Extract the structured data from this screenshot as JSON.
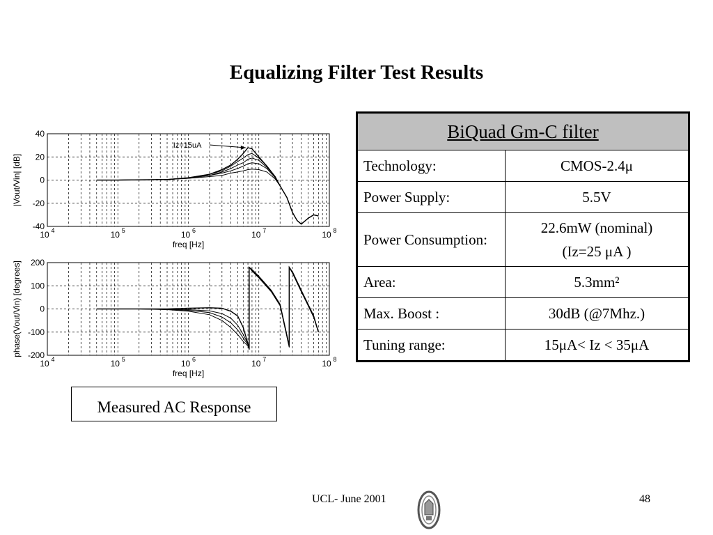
{
  "slide": {
    "title": "Equalizing Filter Test Results",
    "caption": "Measured AC Response",
    "footer": "UCL- June 2001",
    "page_number": "48"
  },
  "table": {
    "header": "BiQuad Gm-C filter",
    "rows": [
      {
        "label": "Technology:",
        "value": "CMOS-2.4μ"
      },
      {
        "label": "Power Supply:",
        "value": "5.5V"
      },
      {
        "label": "Power Consumption:",
        "value_lines": [
          "22.6mW (nominal)",
          "(Iz=25 μA )"
        ]
      },
      {
        "label": "Area:",
        "value": "5.3mm²"
      },
      {
        "label": "Max. Boost :",
        "value": "30dB (@7Mhz.)"
      },
      {
        "label": "Tuning range:",
        "value": "15μA< Iz < 35μA"
      }
    ]
  },
  "chart_data": [
    {
      "type": "line",
      "xscale": "log",
      "xlabel": "freq [Hz]",
      "ylabel": "|Vout/Vin| [dB]",
      "xlim": [
        10000,
        100000000
      ],
      "ylim": [
        -40,
        40
      ],
      "yticks": [
        40,
        20,
        0,
        -20,
        -40
      ],
      "xtick_exponents": [
        "4",
        "5",
        "6",
        "7",
        "8"
      ],
      "annotation": "Iz=15uA",
      "grid": true,
      "series": [
        {
          "x": [
            50000,
            100000,
            500000,
            1000000,
            2000000,
            3000000,
            4000000,
            5000000,
            6000000,
            7000000,
            8000000,
            10000000,
            13000000,
            17000000,
            20000000,
            25000000,
            30000000,
            35000000,
            40000000,
            50000000,
            60000000,
            70000000
          ],
          "y": [
            0,
            0,
            0.5,
            2,
            5,
            9,
            13,
            18,
            23,
            28,
            27,
            20,
            12,
            3,
            -5,
            -15,
            -28,
            -35,
            -38,
            -33,
            -30,
            -31
          ]
        },
        {
          "x": [
            50000,
            100000,
            500000,
            1000000,
            2000000,
            3000000,
            4000000,
            5000000,
            6000000,
            7000000,
            8000000,
            10000000,
            13000000,
            17000000,
            20000000,
            25000000,
            30000000,
            35000000,
            40000000,
            50000000,
            60000000,
            70000000
          ],
          "y": [
            0,
            0,
            0.5,
            2,
            5,
            8,
            12,
            16,
            19,
            22,
            23,
            19,
            12,
            3,
            -5,
            -15,
            -28,
            -35,
            -38,
            -33,
            -30,
            -31
          ]
        },
        {
          "x": [
            50000,
            100000,
            500000,
            1000000,
            2000000,
            3000000,
            4000000,
            5000000,
            6000000,
            7000000,
            8000000,
            10000000,
            13000000,
            17000000,
            20000000,
            25000000,
            30000000,
            35000000,
            40000000,
            50000000,
            60000000,
            70000000
          ],
          "y": [
            0,
            0,
            0.5,
            2,
            4,
            7,
            10,
            13,
            15,
            18,
            19,
            17,
            11,
            3,
            -5,
            -15,
            -28,
            -35,
            -38,
            -33,
            -30,
            -31
          ]
        },
        {
          "x": [
            50000,
            100000,
            500000,
            1000000,
            2000000,
            3000000,
            4000000,
            5000000,
            6000000,
            7000000,
            8000000,
            10000000,
            13000000,
            17000000,
            20000000,
            25000000,
            30000000,
            35000000,
            40000000,
            50000000,
            60000000,
            70000000
          ],
          "y": [
            0,
            0,
            0.5,
            1.5,
            4,
            6,
            8,
            10,
            12,
            14,
            15,
            14,
            10,
            2,
            -5,
            -15,
            -28,
            -35,
            -38,
            -33,
            -30,
            -31
          ]
        },
        {
          "x": [
            50000,
            100000,
            500000,
            1000000,
            2000000,
            3000000,
            4000000,
            5000000,
            6000000,
            7000000,
            8000000,
            10000000,
            13000000,
            17000000,
            20000000,
            25000000,
            30000000,
            35000000,
            40000000,
            50000000,
            60000000,
            70000000
          ],
          "y": [
            0,
            0,
            0.5,
            1.5,
            3,
            4,
            6,
            7,
            8,
            9,
            9.5,
            9,
            7,
            1,
            -5,
            -15,
            -28,
            -35,
            -38,
            -33,
            -30,
            -31
          ]
        }
      ]
    },
    {
      "type": "line",
      "xscale": "log",
      "xlabel": "freq [Hz]",
      "ylabel": "phase(Vout/Vin) [degrees]",
      "xlim": [
        10000,
        100000000
      ],
      "ylim": [
        -200,
        200
      ],
      "yticks": [
        200,
        100,
        0,
        -100,
        -200
      ],
      "xtick_exponents": [
        "4",
        "5",
        "6",
        "7",
        "8"
      ],
      "grid": true,
      "series": [
        {
          "x": [
            50000,
            200000,
            500000,
            1000000,
            2000000,
            3000000,
            4000000,
            5000000,
            6000000,
            7000000,
            7300000,
            7300001,
            8000000,
            10000000,
            15000000,
            20000000,
            27000000,
            27000001,
            30000000,
            40000000,
            50000000,
            60000000,
            70000000
          ],
          "y": [
            0,
            0,
            0,
            3,
            5,
            3,
            -10,
            -30,
            -80,
            -150,
            -175,
            180,
            170,
            140,
            80,
            20,
            -160,
            180,
            160,
            80,
            20,
            -30,
            -100
          ]
        },
        {
          "x": [
            50000,
            200000,
            500000,
            1000000,
            2000000,
            3000000,
            4000000,
            5000000,
            6000000,
            7000000,
            7300000,
            7300001,
            8000000,
            10000000,
            15000000,
            20000000,
            27000000,
            27000001,
            30000000,
            40000000,
            50000000,
            60000000,
            70000000
          ],
          "y": [
            0,
            0,
            -1,
            -3,
            -8,
            -20,
            -40,
            -70,
            -110,
            -150,
            -170,
            180,
            168,
            138,
            78,
            18,
            -162,
            180,
            158,
            78,
            18,
            -32,
            -100
          ]
        },
        {
          "x": [
            50000,
            200000,
            500000,
            1000000,
            2000000,
            3000000,
            4000000,
            5000000,
            6000000,
            7000000,
            7300000,
            7300001,
            8000000,
            10000000,
            15000000,
            20000000,
            27000000,
            27000001,
            30000000,
            40000000,
            50000000,
            60000000,
            70000000
          ],
          "y": [
            0,
            0,
            -2,
            -6,
            -16,
            -35,
            -60,
            -90,
            -125,
            -155,
            -168,
            180,
            166,
            136,
            76,
            16,
            -164,
            180,
            156,
            76,
            16,
            -34,
            -100
          ]
        },
        {
          "x": [
            50000,
            200000,
            500000,
            1000000,
            2000000,
            3000000,
            4000000,
            5000000,
            6000000,
            7000000,
            7300000,
            7300001,
            8000000,
            10000000,
            15000000,
            20000000,
            27000000,
            27000001,
            30000000,
            40000000,
            50000000,
            60000000,
            70000000
          ],
          "y": [
            0,
            0,
            -3,
            -10,
            -25,
            -50,
            -80,
            -110,
            -140,
            -160,
            -168,
            180,
            164,
            134,
            74,
            14,
            -166,
            180,
            154,
            74,
            14,
            -36,
            -100
          ]
        }
      ]
    }
  ]
}
